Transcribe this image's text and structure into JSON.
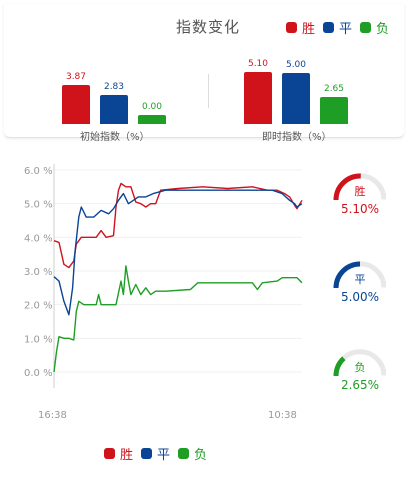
{
  "header": {
    "title": "指数变化",
    "legend": [
      {
        "label": "胜",
        "color": "#d0121b"
      },
      {
        "label": "平",
        "color": "#0a4494"
      },
      {
        "label": "负",
        "color": "#1e9e24"
      }
    ]
  },
  "initial": {
    "label": "初始指数（%）",
    "bars": [
      {
        "name": "胜",
        "value": 3.87,
        "display": "3.87",
        "color": "#d0121b"
      },
      {
        "name": "平",
        "value": 2.83,
        "display": "2.83",
        "color": "#0a4494"
      },
      {
        "name": "负",
        "value": 0.0,
        "display": "0.00",
        "color": "#1e9e24"
      }
    ]
  },
  "current": {
    "label": "即时指数（%）",
    "bars": [
      {
        "name": "胜",
        "value": 5.1,
        "display": "5.10",
        "color": "#d0121b"
      },
      {
        "name": "平",
        "value": 5.0,
        "display": "5.00",
        "color": "#0a4494"
      },
      {
        "name": "负",
        "value": 2.65,
        "display": "2.65",
        "color": "#1e9e24"
      }
    ]
  },
  "gauges": [
    {
      "label": "胜",
      "value": "5.10%",
      "fraction": 0.51,
      "color": "#d0121b"
    },
    {
      "label": "平",
      "value": "5.00%",
      "fraction": 0.5,
      "color": "#0a4494"
    },
    {
      "label": "负",
      "value": "2.65%",
      "fraction": 0.265,
      "color": "#1e9e24"
    }
  ],
  "chart_data": {
    "type": "line",
    "y_ticks": [
      "6.0 %",
      "5.0 %",
      "4.0 %",
      "3.0 %",
      "2.0 %",
      "1.0 %",
      "0.0 %"
    ],
    "ylim": [
      0,
      6
    ],
    "x_labels": [
      "16:38",
      "10:38"
    ],
    "series": [
      {
        "name": "胜",
        "color": "#d0121b",
        "points": [
          [
            0,
            3.9
          ],
          [
            0.02,
            3.85
          ],
          [
            0.04,
            3.2
          ],
          [
            0.06,
            3.1
          ],
          [
            0.08,
            3.3
          ],
          [
            0.09,
            3.8
          ],
          [
            0.11,
            4.0
          ],
          [
            0.14,
            4.0
          ],
          [
            0.17,
            4.0
          ],
          [
            0.19,
            4.2
          ],
          [
            0.21,
            4.0
          ],
          [
            0.24,
            4.05
          ],
          [
            0.25,
            4.9
          ],
          [
            0.26,
            5.4
          ],
          [
            0.27,
            5.6
          ],
          [
            0.29,
            5.5
          ],
          [
            0.31,
            5.5
          ],
          [
            0.33,
            5.05
          ],
          [
            0.35,
            5.0
          ],
          [
            0.37,
            4.9
          ],
          [
            0.39,
            5.0
          ],
          [
            0.41,
            5.0
          ],
          [
            0.43,
            5.4
          ],
          [
            0.5,
            5.45
          ],
          [
            0.6,
            5.5
          ],
          [
            0.7,
            5.45
          ],
          [
            0.8,
            5.5
          ],
          [
            0.86,
            5.4
          ],
          [
            0.9,
            5.4
          ],
          [
            0.93,
            5.3
          ],
          [
            0.95,
            5.2
          ],
          [
            0.97,
            4.95
          ],
          [
            0.98,
            4.85
          ],
          [
            1.0,
            5.1
          ]
        ]
      },
      {
        "name": "平",
        "color": "#0a4494",
        "points": [
          [
            0,
            2.83
          ],
          [
            0.02,
            2.7
          ],
          [
            0.04,
            2.1
          ],
          [
            0.06,
            1.7
          ],
          [
            0.075,
            2.5
          ],
          [
            0.085,
            3.6
          ],
          [
            0.1,
            4.6
          ],
          [
            0.11,
            4.9
          ],
          [
            0.13,
            4.6
          ],
          [
            0.16,
            4.6
          ],
          [
            0.19,
            4.8
          ],
          [
            0.22,
            4.7
          ],
          [
            0.24,
            4.85
          ],
          [
            0.26,
            5.1
          ],
          [
            0.28,
            5.3
          ],
          [
            0.3,
            5.0
          ],
          [
            0.32,
            5.1
          ],
          [
            0.34,
            5.2
          ],
          [
            0.37,
            5.2
          ],
          [
            0.4,
            5.3
          ],
          [
            0.45,
            5.4
          ],
          [
            0.55,
            5.4
          ],
          [
            0.65,
            5.4
          ],
          [
            0.75,
            5.4
          ],
          [
            0.82,
            5.4
          ],
          [
            0.88,
            5.4
          ],
          [
            0.92,
            5.3
          ],
          [
            0.95,
            5.1
          ],
          [
            0.97,
            5.0
          ],
          [
            0.98,
            4.9
          ],
          [
            1.0,
            5.0
          ]
        ]
      },
      {
        "name": "负",
        "color": "#1e9e24",
        "points": [
          [
            0,
            0
          ],
          [
            0.01,
            0.6
          ],
          [
            0.02,
            1.05
          ],
          [
            0.04,
            1.0
          ],
          [
            0.06,
            1.0
          ],
          [
            0.08,
            0.95
          ],
          [
            0.09,
            1.8
          ],
          [
            0.1,
            2.1
          ],
          [
            0.12,
            2.0
          ],
          [
            0.17,
            2.0
          ],
          [
            0.18,
            2.3
          ],
          [
            0.19,
            2.0
          ],
          [
            0.25,
            2.0
          ],
          [
            0.27,
            2.7
          ],
          [
            0.28,
            2.3
          ],
          [
            0.29,
            3.15
          ],
          [
            0.3,
            2.7
          ],
          [
            0.31,
            2.3
          ],
          [
            0.33,
            2.6
          ],
          [
            0.35,
            2.3
          ],
          [
            0.37,
            2.5
          ],
          [
            0.39,
            2.3
          ],
          [
            0.41,
            2.4
          ],
          [
            0.45,
            2.4
          ],
          [
            0.55,
            2.45
          ],
          [
            0.58,
            2.65
          ],
          [
            0.7,
            2.65
          ],
          [
            0.8,
            2.65
          ],
          [
            0.82,
            2.45
          ],
          [
            0.84,
            2.65
          ],
          [
            0.9,
            2.7
          ],
          [
            0.92,
            2.8
          ],
          [
            0.96,
            2.8
          ],
          [
            0.98,
            2.8
          ],
          [
            1.0,
            2.65
          ]
        ]
      }
    ]
  },
  "bottom_legend": [
    {
      "label": "胜",
      "color": "#d0121b"
    },
    {
      "label": "平",
      "color": "#0a4494"
    },
    {
      "label": "负",
      "color": "#1e9e24"
    }
  ]
}
